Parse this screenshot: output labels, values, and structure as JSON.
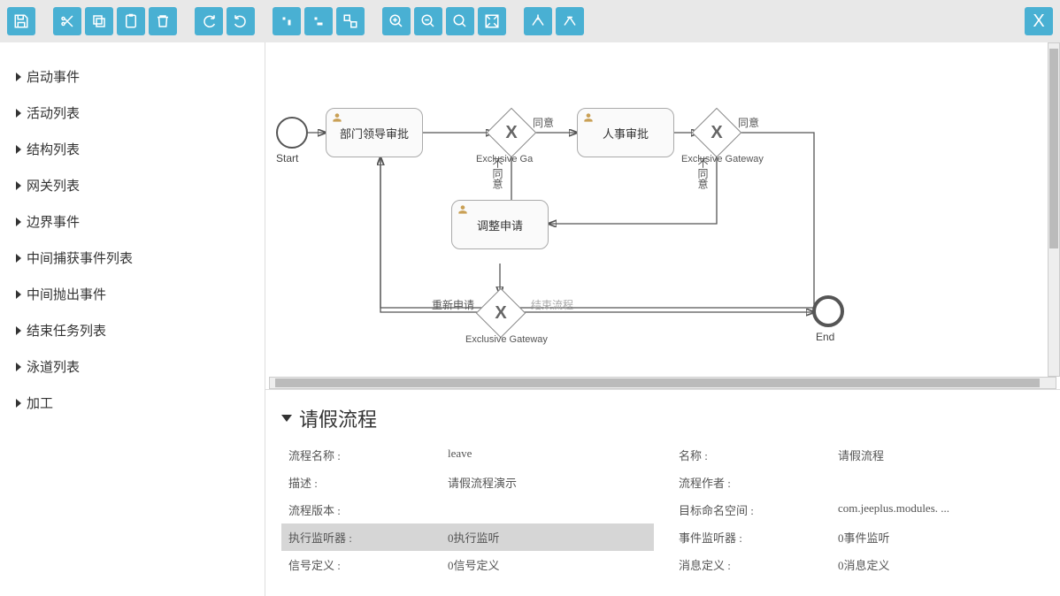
{
  "toolbar": {
    "buttons": [
      {
        "name": "save",
        "icon": "save"
      },
      {
        "sep": true
      },
      {
        "name": "cut",
        "icon": "cut"
      },
      {
        "name": "copy",
        "icon": "copy"
      },
      {
        "name": "paste",
        "icon": "paste"
      },
      {
        "name": "delete",
        "icon": "trash"
      },
      {
        "sep": true
      },
      {
        "name": "redo",
        "icon": "redo"
      },
      {
        "name": "undo",
        "icon": "undo"
      },
      {
        "sep": true
      },
      {
        "name": "align-v",
        "icon": "alignv"
      },
      {
        "name": "align-h",
        "icon": "alignh"
      },
      {
        "name": "same-size",
        "icon": "samesize"
      },
      {
        "sep": true
      },
      {
        "name": "zoom-in",
        "icon": "zoomin"
      },
      {
        "name": "zoom-out",
        "icon": "zoomout"
      },
      {
        "name": "zoom-reset",
        "icon": "zoomreset"
      },
      {
        "name": "zoom-fit",
        "icon": "zoomfit"
      },
      {
        "sep": true
      },
      {
        "name": "bend-add",
        "icon": "bendadd"
      },
      {
        "name": "bend-remove",
        "icon": "bendrem"
      }
    ],
    "close": "X"
  },
  "sidebar": {
    "items": [
      {
        "label": "启动事件"
      },
      {
        "label": "活动列表"
      },
      {
        "label": "结构列表"
      },
      {
        "label": "网关列表"
      },
      {
        "label": "边界事件"
      },
      {
        "label": "中间捕获事件列表"
      },
      {
        "label": "中间抛出事件"
      },
      {
        "label": "结束任务列表"
      },
      {
        "label": "泳道列表"
      },
      {
        "label": "加工"
      }
    ]
  },
  "diagram": {
    "start_label": "Start",
    "end_label": "End",
    "tasks": {
      "t1": "部门领导审批",
      "t2": "人事审批",
      "t3": "调整申请"
    },
    "gateways": {
      "g1": "Exclusive Ga",
      "g2": "Exclusive Gateway",
      "g3": "Exclusive Gateway"
    },
    "flows": {
      "agree": "同意",
      "disagree": "不同意",
      "reapply": "重新申请",
      "endflow": "结束流程"
    }
  },
  "props": {
    "title": "请假流程",
    "rows_left": [
      {
        "label": "流程名称  :",
        "val": "leave"
      },
      {
        "label": "描述  :",
        "val": "请假流程演示"
      },
      {
        "label": "流程版本  :",
        "val": ""
      },
      {
        "label": "执行监听器  :",
        "val": "0执行监听",
        "sel": true
      },
      {
        "label": "信号定义  :",
        "val": "0信号定义"
      }
    ],
    "rows_right": [
      {
        "label": "名称  :",
        "val": "请假流程"
      },
      {
        "label": "流程作者  :",
        "val": ""
      },
      {
        "label": "目标命名空间  :",
        "val": "com.jeeplus.modules. ..."
      },
      {
        "label": "事件监听器  :",
        "val": "0事件监听"
      },
      {
        "label": "消息定义  :",
        "val": "0消息定义"
      }
    ]
  }
}
